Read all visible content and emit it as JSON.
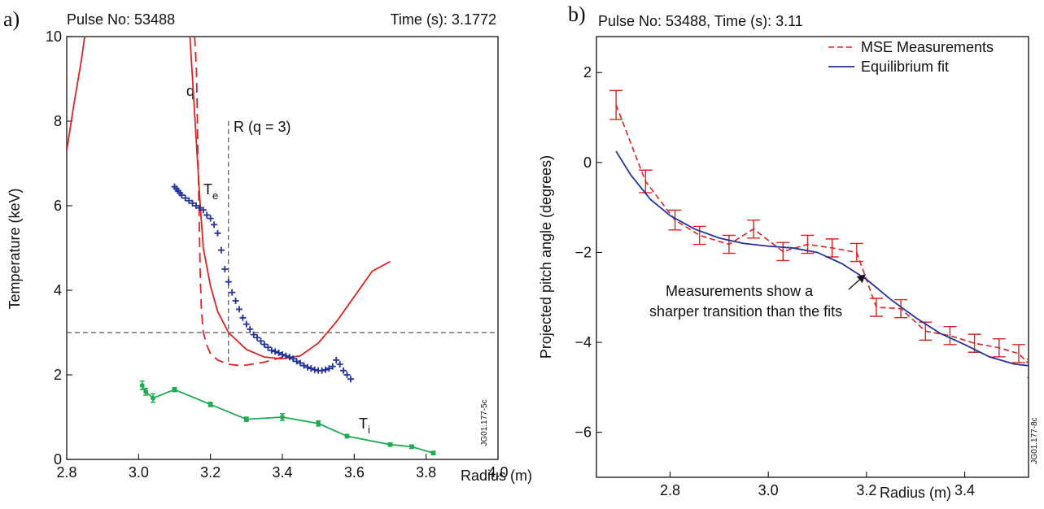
{
  "chart_data": [
    {
      "type": "line",
      "panel_label": "a)",
      "header_left": "Pulse No: 53488",
      "header_right": "Time (s): 3.1772",
      "xlabel": "Radius (m)",
      "ylabel": "Temperature (keV)",
      "xlim": [
        2.8,
        4.0
      ],
      "ylim": [
        0,
        10
      ],
      "xticks": [
        "2.8",
        "3.0",
        "3.2",
        "3.4",
        "3.6",
        "3.8",
        "4.0"
      ],
      "yticks": [
        "0",
        "2",
        "4",
        "6",
        "8",
        "10"
      ],
      "plot_id": "JG01.177-5c",
      "annotations": {
        "q": "q",
        "rq3": "R (q = 3)",
        "te_main": "T",
        "te_sub": "e",
        "ti_main": "T",
        "ti_sub": "i"
      },
      "reference_lines": {
        "horizontal_y": 3.0,
        "vertical_x": 3.25
      },
      "colors": {
        "q_profile": "#dd2222",
        "Te": "#223399",
        "Ti": "#22aa55",
        "reference": "#555555"
      },
      "series": [
        {
          "key": "q_left",
          "style": "solid",
          "x": [
            2.8,
            2.82,
            2.84,
            2.85,
            2.86
          ],
          "y": [
            7.3,
            8.4,
            9.4,
            10.0,
            10.6
          ]
        },
        {
          "key": "q_main",
          "style": "solid",
          "x": [
            3.14,
            3.15,
            3.16,
            3.17,
            3.18,
            3.2,
            3.22,
            3.25,
            3.3,
            3.35,
            3.4,
            3.45,
            3.5,
            3.55,
            3.6,
            3.65,
            3.7
          ],
          "y": [
            10.4,
            9.0,
            7.6,
            6.2,
            5.0,
            4.1,
            3.5,
            3.0,
            2.6,
            2.42,
            2.38,
            2.45,
            2.75,
            3.25,
            3.85,
            4.45,
            4.68
          ]
        },
        {
          "key": "q_dashed",
          "style": "dashed",
          "x": [
            3.156,
            3.161,
            3.163,
            3.165,
            3.168,
            3.17,
            3.172,
            3.175,
            3.18,
            3.19,
            3.2,
            3.22,
            3.25,
            3.28,
            3.3,
            3.35,
            3.4
          ],
          "y": [
            10.0,
            9.2,
            8.3,
            7.2,
            6.0,
            5.0,
            4.2,
            3.5,
            3.0,
            2.7,
            2.5,
            2.35,
            2.25,
            2.22,
            2.23,
            2.3,
            2.42
          ]
        },
        {
          "key": "Te",
          "style": "plus",
          "x": [
            3.1,
            3.105,
            3.11,
            3.115,
            3.12,
            3.13,
            3.14,
            3.15,
            3.16,
            3.17,
            3.18,
            3.19,
            3.2,
            3.21,
            3.22,
            3.23,
            3.24,
            3.25,
            3.26,
            3.27,
            3.28,
            3.29,
            3.3,
            3.31,
            3.32,
            3.33,
            3.34,
            3.35,
            3.36,
            3.37,
            3.38,
            3.39,
            3.4,
            3.41,
            3.42,
            3.43,
            3.44,
            3.45,
            3.46,
            3.47,
            3.48,
            3.49,
            3.5,
            3.51,
            3.52,
            3.53,
            3.54,
            3.55,
            3.56,
            3.57,
            3.58,
            3.59
          ],
          "y": [
            6.45,
            6.4,
            6.35,
            6.3,
            6.25,
            6.18,
            6.12,
            6.06,
            6.0,
            5.95,
            5.9,
            5.78,
            5.7,
            5.55,
            5.35,
            4.95,
            4.5,
            4.2,
            3.95,
            3.75,
            3.55,
            3.35,
            3.2,
            3.08,
            2.95,
            2.88,
            2.8,
            2.72,
            2.65,
            2.58,
            2.55,
            2.52,
            2.48,
            2.45,
            2.42,
            2.38,
            2.32,
            2.28,
            2.22,
            2.18,
            2.15,
            2.12,
            2.1,
            2.1,
            2.12,
            2.15,
            2.2,
            2.35,
            2.25,
            2.1,
            2.0,
            1.9
          ]
        },
        {
          "key": "Ti",
          "style": "marker-line",
          "x": [
            3.01,
            3.02,
            3.04,
            3.1,
            3.2,
            3.3,
            3.4,
            3.5,
            3.58,
            3.7,
            3.76,
            3.82
          ],
          "y": [
            1.75,
            1.6,
            1.45,
            1.65,
            1.3,
            0.95,
            1.0,
            0.85,
            0.55,
            0.35,
            0.3,
            0.15
          ],
          "err": [
            0.1,
            0.08,
            0.1,
            0.05,
            0.05,
            0.05,
            0.08,
            0.06,
            0.04,
            0.04,
            0.04,
            0.04
          ]
        }
      ]
    },
    {
      "type": "line",
      "panel_label": "b)",
      "header_left": "Pulse No: 53488, Time (s): 3.11",
      "xlabel": "Radius (m)",
      "ylabel": "Projected pitch angle (degrees)",
      "xlim": [
        2.65,
        3.53
      ],
      "ylim": [
        -7,
        2.8
      ],
      "xticks": [
        "2.8",
        "3.0",
        "3.2",
        "3.4"
      ],
      "yticks": [
        "2",
        "0",
        "−2",
        "−4",
        "−6"
      ],
      "plot_id": "JG01.177-8c",
      "annotation_lines": [
        "Measurements show a",
        "sharper transition than the fits"
      ],
      "colors": {
        "MSE Measurements": "#dd2222",
        "Equilibrium fit": "#223399"
      },
      "series": [
        {
          "name": "MSE Measurements",
          "style": "dashed",
          "x": [
            2.69,
            2.75,
            2.81,
            2.86,
            2.92,
            2.97,
            3.03,
            3.08,
            3.13,
            3.18,
            3.22,
            3.27,
            3.32,
            3.37,
            3.42,
            3.47,
            3.51,
            3.54
          ],
          "y": [
            1.28,
            -0.42,
            -1.28,
            -1.62,
            -1.82,
            -1.48,
            -1.98,
            -1.82,
            -1.9,
            -2.0,
            -3.22,
            -3.25,
            -3.75,
            -3.85,
            -4.02,
            -4.12,
            -4.25,
            -4.58
          ],
          "err": [
            0.32,
            0.25,
            0.22,
            0.2,
            0.2,
            0.2,
            0.2,
            0.2,
            0.2,
            0.2,
            0.2,
            0.2,
            0.2,
            0.2,
            0.2,
            0.2,
            0.2,
            0.2
          ]
        },
        {
          "name": "Equilibrium fit",
          "style": "solid",
          "x": [
            2.69,
            2.72,
            2.76,
            2.8,
            2.85,
            2.9,
            2.95,
            3.0,
            3.05,
            3.1,
            3.15,
            3.2,
            3.25,
            3.3,
            3.35,
            3.4,
            3.45,
            3.5,
            3.53
          ],
          "y": [
            0.25,
            -0.28,
            -0.82,
            -1.18,
            -1.48,
            -1.68,
            -1.8,
            -1.86,
            -1.9,
            -2.0,
            -2.25,
            -2.6,
            -3.05,
            -3.45,
            -3.8,
            -4.05,
            -4.32,
            -4.48,
            -4.52
          ]
        }
      ]
    }
  ]
}
